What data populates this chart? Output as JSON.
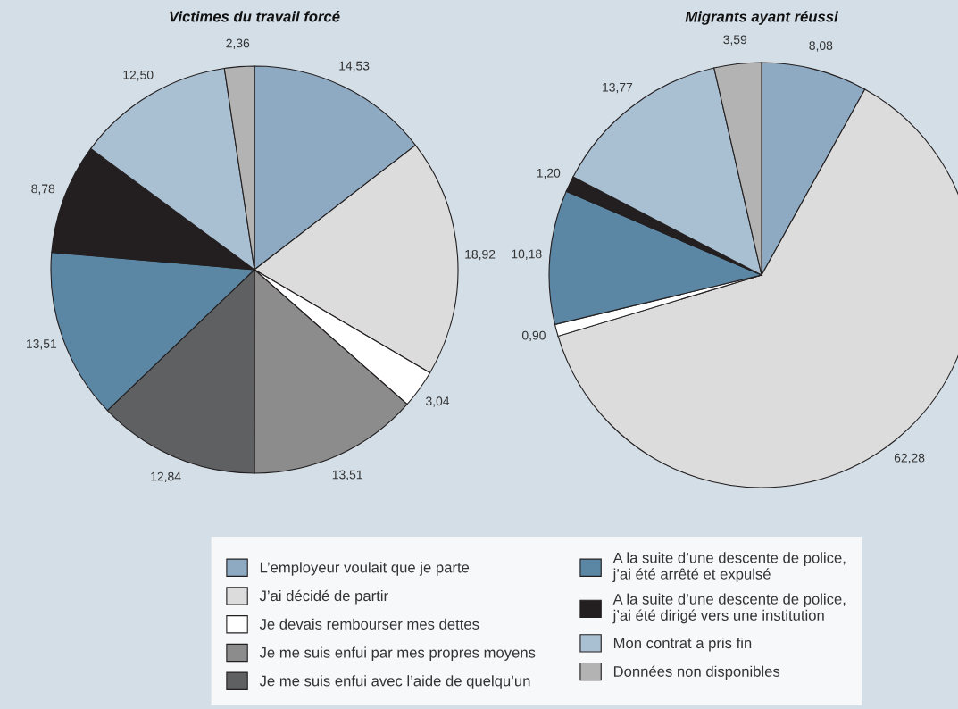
{
  "chart_data": [
    {
      "type": "pie",
      "title": "Victimes du travail forcé",
      "legend": "bottom",
      "categories": [
        "L’employeur voulait que je parte",
        "J’ai décidé de partir",
        "Je devais rembourser mes dettes",
        "Je me suis enfui par mes propres moyens",
        "Je me suis enfui avec l’aide de quelqu’un",
        "A la suite d’une descente de police, j’ai été arrêté et expulsé",
        "A la suite d’une descente de police, j’ai été dirigé vers une institution",
        "Mon contrat a pris fin",
        "Données non disponibles"
      ],
      "values": [
        14.53,
        18.92,
        3.04,
        13.51,
        12.84,
        13.51,
        8.78,
        12.5,
        2.36
      ],
      "value_labels": [
        "14,53",
        "18,92",
        "3,04",
        "13,51",
        "12,84",
        "13,51",
        "8,78",
        "12,50",
        "2,36"
      ],
      "colors": [
        "#8eaac2",
        "#dcdcdc",
        "#ffffff",
        "#8c8c8c",
        "#5f6062",
        "#5b87a4",
        "#231f20",
        "#a9bfd2",
        "#b3b3b3"
      ]
    },
    {
      "type": "pie",
      "title": "Migrants ayant réussi",
      "values": [
        8.08,
        62.28,
        0.9,
        10.18,
        1.2,
        13.77,
        3.59
      ],
      "value_labels": [
        "8,08",
        "62,28",
        "0,90",
        "10,18",
        "1,20",
        "13,77",
        "3,59"
      ],
      "colors": [
        "#8eaac2",
        "#dcdcdc",
        "#ffffff",
        "#5b87a4",
        "#231f20",
        "#a9bfd2",
        "#b3b3b3"
      ]
    }
  ]
}
